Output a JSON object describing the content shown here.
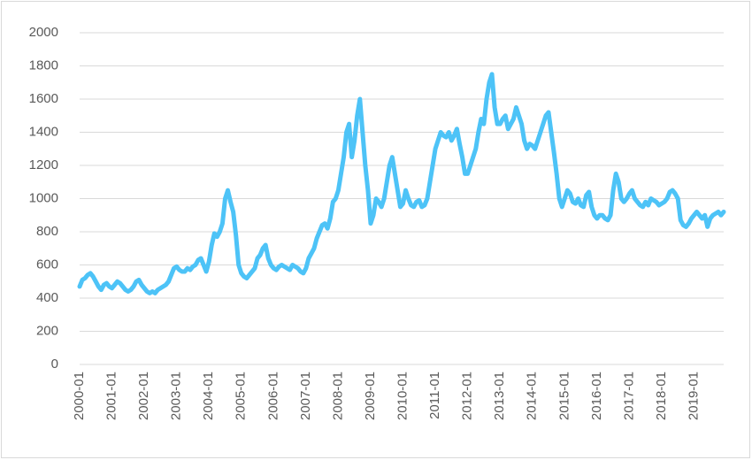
{
  "chart_data": {
    "type": "line",
    "x": [
      "2000-01",
      "2000-02",
      "2000-03",
      "2000-04",
      "2000-05",
      "2000-06",
      "2000-07",
      "2000-08",
      "2000-09",
      "2000-10",
      "2000-11",
      "2000-12",
      "2001-01",
      "2001-02",
      "2001-03",
      "2001-04",
      "2001-05",
      "2001-06",
      "2001-07",
      "2001-08",
      "2001-09",
      "2001-10",
      "2001-11",
      "2001-12",
      "2002-01",
      "2002-02",
      "2002-03",
      "2002-04",
      "2002-05",
      "2002-06",
      "2002-07",
      "2002-08",
      "2002-09",
      "2002-10",
      "2002-11",
      "2002-12",
      "2003-01",
      "2003-02",
      "2003-03",
      "2003-04",
      "2003-05",
      "2003-06",
      "2003-07",
      "2003-08",
      "2003-09",
      "2003-10",
      "2003-11",
      "2003-12",
      "2004-01",
      "2004-02",
      "2004-03",
      "2004-04",
      "2004-05",
      "2004-06",
      "2004-07",
      "2004-08",
      "2004-09",
      "2004-10",
      "2004-11",
      "2004-12",
      "2005-01",
      "2005-02",
      "2005-03",
      "2005-04",
      "2005-05",
      "2005-06",
      "2005-07",
      "2005-08",
      "2005-09",
      "2005-10",
      "2005-11",
      "2005-12",
      "2006-01",
      "2006-02",
      "2006-03",
      "2006-04",
      "2006-05",
      "2006-06",
      "2006-07",
      "2006-08",
      "2006-09",
      "2006-10",
      "2006-11",
      "2006-12",
      "2007-01",
      "2007-02",
      "2007-03",
      "2007-04",
      "2007-05",
      "2007-06",
      "2007-07",
      "2007-08",
      "2007-09",
      "2007-10",
      "2007-11",
      "2007-12",
      "2008-01",
      "2008-02",
      "2008-03",
      "2008-04",
      "2008-05",
      "2008-06",
      "2008-07",
      "2008-08",
      "2008-09",
      "2008-10",
      "2008-11",
      "2008-12",
      "2009-01",
      "2009-02",
      "2009-03",
      "2009-04",
      "2009-05",
      "2009-06",
      "2009-07",
      "2009-08",
      "2009-09",
      "2009-10",
      "2009-11",
      "2009-12",
      "2010-01",
      "2010-02",
      "2010-03",
      "2010-04",
      "2010-05",
      "2010-06",
      "2010-07",
      "2010-08",
      "2010-09",
      "2010-10",
      "2010-11",
      "2010-12",
      "2011-01",
      "2011-02",
      "2011-03",
      "2011-04",
      "2011-05",
      "2011-06",
      "2011-07",
      "2011-08",
      "2011-09",
      "2011-10",
      "2011-11",
      "2011-12",
      "2012-01",
      "2012-02",
      "2012-03",
      "2012-04",
      "2012-05",
      "2012-06",
      "2012-07",
      "2012-08",
      "2012-09",
      "2012-10",
      "2012-11",
      "2012-12",
      "2013-01",
      "2013-02",
      "2013-03",
      "2013-04",
      "2013-05",
      "2013-06",
      "2013-07",
      "2013-08",
      "2013-09",
      "2013-10",
      "2013-11",
      "2013-12",
      "2014-01",
      "2014-02",
      "2014-03",
      "2014-04",
      "2014-05",
      "2014-06",
      "2014-07",
      "2014-08",
      "2014-09",
      "2014-10",
      "2014-11",
      "2014-12",
      "2015-01",
      "2015-02",
      "2015-03",
      "2015-04",
      "2015-05",
      "2015-06",
      "2015-07",
      "2015-08",
      "2015-09",
      "2015-10",
      "2015-11",
      "2015-12",
      "2016-01",
      "2016-02",
      "2016-03",
      "2016-04",
      "2016-05",
      "2016-06",
      "2016-07",
      "2016-08",
      "2016-09",
      "2016-10",
      "2016-11",
      "2016-12",
      "2017-01",
      "2017-02",
      "2017-03",
      "2017-04",
      "2017-05",
      "2017-06",
      "2017-07",
      "2017-08",
      "2017-09",
      "2017-10",
      "2017-11",
      "2017-12",
      "2018-01",
      "2018-02",
      "2018-03",
      "2018-04",
      "2018-05",
      "2018-06",
      "2018-07",
      "2018-08",
      "2018-09",
      "2018-10",
      "2018-11",
      "2018-12",
      "2019-01",
      "2019-02",
      "2019-03",
      "2019-04",
      "2019-05",
      "2019-06",
      "2019-07",
      "2019-08",
      "2019-09",
      "2019-10",
      "2019-11",
      "2019-12"
    ],
    "values": [
      470,
      510,
      520,
      540,
      550,
      530,
      500,
      470,
      450,
      480,
      490,
      470,
      460,
      480,
      500,
      490,
      470,
      450,
      440,
      450,
      470,
      500,
      510,
      480,
      460,
      440,
      430,
      440,
      430,
      450,
      460,
      470,
      480,
      500,
      540,
      580,
      590,
      570,
      560,
      560,
      580,
      570,
      590,
      600,
      630,
      640,
      600,
      560,
      620,
      720,
      790,
      770,
      800,
      850,
      1000,
      1050,
      980,
      920,
      780,
      600,
      550,
      530,
      520,
      540,
      560,
      580,
      640,
      660,
      700,
      720,
      640,
      600,
      580,
      570,
      590,
      600,
      590,
      580,
      570,
      600,
      590,
      580,
      560,
      550,
      580,
      640,
      670,
      700,
      760,
      800,
      840,
      850,
      820,
      880,
      980,
      1000,
      1050,
      1150,
      1250,
      1400,
      1450,
      1250,
      1350,
      1500,
      1600,
      1400,
      1200,
      1050,
      850,
      900,
      1000,
      980,
      950,
      1000,
      1100,
      1200,
      1250,
      1150,
      1050,
      950,
      970,
      1050,
      1000,
      960,
      950,
      980,
      990,
      950,
      960,
      1000,
      1100,
      1200,
      1300,
      1350,
      1400,
      1380,
      1370,
      1400,
      1350,
      1380,
      1420,
      1330,
      1250,
      1150,
      1150,
      1200,
      1250,
      1300,
      1400,
      1480,
      1450,
      1600,
      1700,
      1750,
      1550,
      1450,
      1450,
      1480,
      1500,
      1420,
      1450,
      1480,
      1550,
      1500,
      1450,
      1350,
      1300,
      1330,
      1320,
      1300,
      1350,
      1400,
      1450,
      1500,
      1520,
      1400,
      1280,
      1150,
      1000,
      950,
      1000,
      1050,
      1030,
      980,
      970,
      1000,
      960,
      950,
      1020,
      1040,
      950,
      900,
      880,
      900,
      900,
      880,
      870,
      900,
      1050,
      1150,
      1100,
      1000,
      980,
      1000,
      1030,
      1050,
      1000,
      980,
      960,
      950,
      980,
      960,
      1000,
      990,
      980,
      960,
      970,
      980,
      1000,
      1040,
      1050,
      1030,
      1000,
      870,
      840,
      830,
      850,
      880,
      900,
      920,
      900,
      880,
      900,
      830,
      880,
      900,
      910,
      920,
      900,
      920
    ],
    "color": "#4dc3f7",
    "xticks": [
      "2000-01",
      "2001-01",
      "2002-01",
      "2003-01",
      "2004-01",
      "2005-01",
      "2006-01",
      "2007-01",
      "2008-01",
      "2009-01",
      "2010-01",
      "2011-01",
      "2012-01",
      "2013-01",
      "2014-01",
      "2015-01",
      "2016-01",
      "2017-01",
      "2018-01",
      "2019-01"
    ],
    "ylim": [
      0,
      2000
    ],
    "yticks": [
      0,
      200,
      400,
      600,
      800,
      1000,
      1200,
      1400,
      1600,
      1800,
      2000
    ],
    "grid": true
  }
}
